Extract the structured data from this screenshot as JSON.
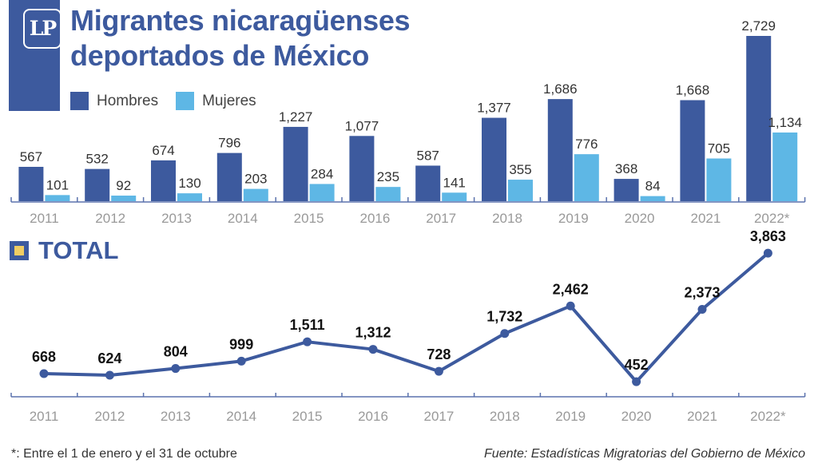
{
  "header": {
    "logo_text": "LP",
    "title_line1": "Migrantes nicaragüenses",
    "title_line2": "deportados de México"
  },
  "colors": {
    "hombres": "#3d5a9e",
    "mujeres": "#5eb7e5",
    "line": "#3d5a9e",
    "accent": "#f0cd63"
  },
  "chart_data": [
    {
      "type": "bar",
      "title": "Migrantes nicaragüenses deportados de México",
      "categories": [
        "2011",
        "2012",
        "2013",
        "2014",
        "2015",
        "2016",
        "2017",
        "2018",
        "2019",
        "2020",
        "2021",
        "2022*"
      ],
      "legend_position": "top-left",
      "series": [
        {
          "name": "Hombres",
          "values": [
            567,
            532,
            674,
            796,
            1227,
            1077,
            587,
            1377,
            1686,
            368,
            1668,
            2729
          ]
        },
        {
          "name": "Mujeres",
          "values": [
            101,
            92,
            130,
            203,
            284,
            235,
            141,
            355,
            776,
            84,
            705,
            1134
          ]
        }
      ],
      "ylim": [
        0,
        2729
      ]
    },
    {
      "type": "line",
      "title": "TOTAL",
      "categories": [
        "2011",
        "2012",
        "2013",
        "2014",
        "2015",
        "2016",
        "2017",
        "2018",
        "2019",
        "2020",
        "2021",
        "2022*"
      ],
      "series": [
        {
          "name": "Total",
          "values": [
            668,
            624,
            804,
            999,
            1511,
            1312,
            728,
            1732,
            2462,
            452,
            2373,
            3863
          ]
        }
      ],
      "ylim": [
        0,
        3863
      ]
    }
  ],
  "footer": {
    "note": "*: Entre el 1 de enero y el 31 de octubre",
    "source": "Fuente: Estadísticas Migratorias del Gobierno de México"
  }
}
